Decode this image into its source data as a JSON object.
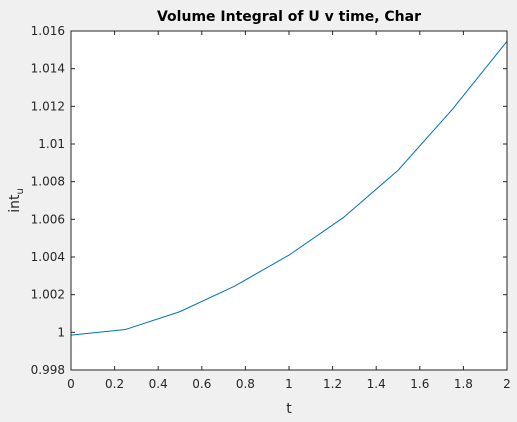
{
  "chart_data": {
    "type": "line",
    "title": "Volume Integral of U v time, Char",
    "xlabel": "t",
    "ylabel": {
      "main": "int",
      "subscript": "u"
    },
    "xlim": [
      0,
      2
    ],
    "ylim": [
      0.998,
      1.016
    ],
    "x_ticks": [
      0,
      0.2,
      0.4,
      0.6,
      0.8,
      1,
      1.2,
      1.4,
      1.6,
      1.8,
      2
    ],
    "x_tick_labels": [
      "0",
      "0.2",
      "0.4",
      "0.6",
      "0.8",
      "1",
      "1.2",
      "1.4",
      "1.6",
      "1.8",
      "2"
    ],
    "y_ticks": [
      0.998,
      1.0,
      1.002,
      1.004,
      1.006,
      1.008,
      1.01,
      1.012,
      1.014,
      1.016
    ],
    "y_tick_labels": [
      "0.998",
      "1",
      "1.002",
      "1.004",
      "1.006",
      "1.008",
      "1.01",
      "1.012",
      "1.014",
      "1.016"
    ],
    "grid": false,
    "box": true,
    "series": [
      {
        "x": [
          0,
          0.25,
          0.5,
          0.75,
          1.0,
          1.25,
          1.5,
          1.75,
          2.0
        ],
        "y": [
          0.99985,
          1.00015,
          1.0011,
          1.00245,
          1.0041,
          1.0061,
          1.0086,
          1.01185,
          1.01545
        ],
        "color": "#0072bd"
      }
    ]
  },
  "colors": {
    "figure_background": "#f0f0f0",
    "axes_background": "#ffffff",
    "axis_color": "#262626",
    "line_color": "#0072bd"
  }
}
